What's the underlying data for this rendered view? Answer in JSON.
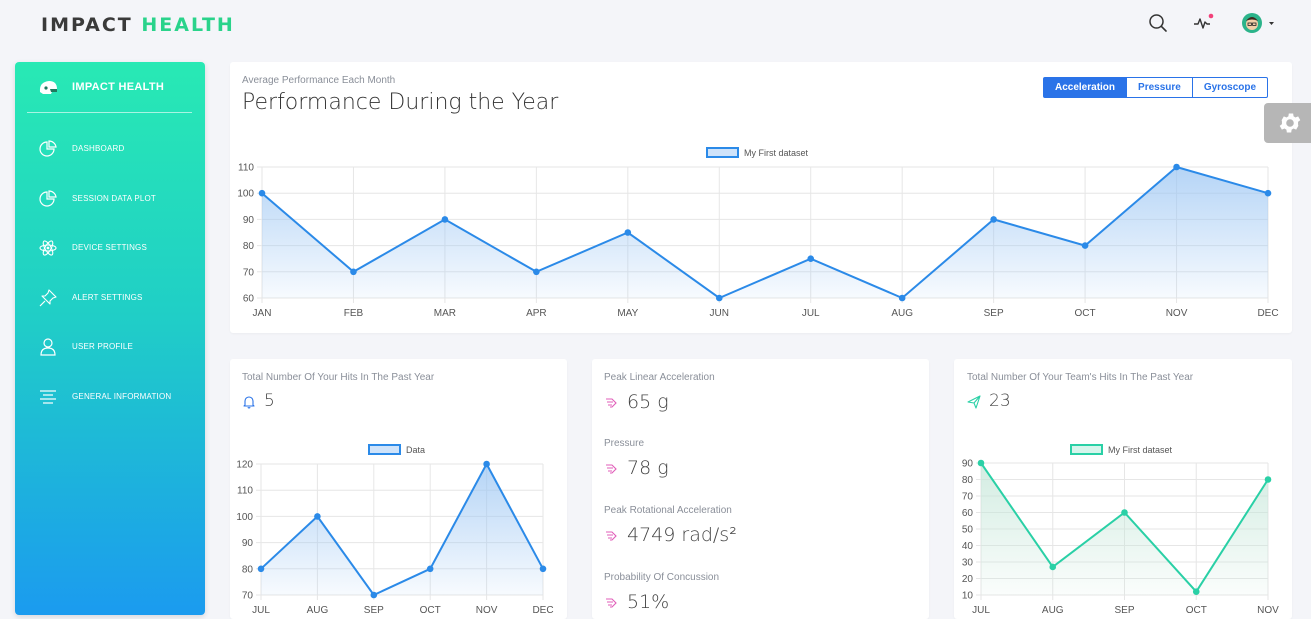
{
  "brand": {
    "part1": "IMPACT",
    "part2": "HEALTH"
  },
  "topbar": {
    "icons": [
      "search-icon",
      "activity-icon",
      "avatar"
    ]
  },
  "sidebar": {
    "title": "IMPACT HEALTH",
    "items": [
      {
        "label": "DASHBOARD",
        "icon": "pie-chart-icon"
      },
      {
        "label": "SESSION DATA PLOT",
        "icon": "pie-chart-icon"
      },
      {
        "label": "DEVICE SETTINGS",
        "icon": "atom-icon"
      },
      {
        "label": "ALERT SETTINGS",
        "icon": "pin-icon"
      },
      {
        "label": "USER PROFILE",
        "icon": "user-icon"
      },
      {
        "label": "GENERAL INFORMATION",
        "icon": "align-center-icon"
      }
    ]
  },
  "performance": {
    "subtitle": "Average Performance Each Month",
    "title": "Performance During the Year",
    "tabs": [
      "Acceleration",
      "Pressure",
      "Gyroscope"
    ],
    "active_tab": "Acceleration"
  },
  "hits": {
    "label": "Total Number Of Your Hits In The Past Year",
    "value": "5"
  },
  "stats": {
    "peak_linear_label": "Peak Linear Acceleration",
    "peak_linear_value": "65 g",
    "pressure_label": "Pressure",
    "pressure_value": "78 g",
    "peak_rot_label": "Peak Rotational Acceleration",
    "peak_rot_value": "4749 rad/s²",
    "concussion_label": "Probability Of Concussion",
    "concussion_value": "51%"
  },
  "team": {
    "label": "Total Number Of Your Team's Hits In The Past Year",
    "value": "23"
  },
  "colors": {
    "accent": "#2a73e8",
    "brand_green": "#2ad38b",
    "line_blue": "#2b8ae8",
    "line_teal": "#2ad0a6",
    "stat_icon": "#e05cb8"
  },
  "chart_data": [
    {
      "type": "line",
      "categories": [
        "JAN",
        "FEB",
        "MAR",
        "APR",
        "MAY",
        "JUN",
        "JUL",
        "AUG",
        "SEP",
        "OCT",
        "NOV",
        "DEC"
      ],
      "series": [
        {
          "name": "My First dataset",
          "values": [
            100,
            70,
            90,
            70,
            85,
            60,
            75,
            60,
            90,
            80,
            110,
            100
          ]
        }
      ],
      "yticks": [
        60,
        70,
        80,
        90,
        100,
        110
      ],
      "ylim": [
        60,
        110
      ],
      "grid": true,
      "legend": "top-center",
      "fill": true
    },
    {
      "type": "line",
      "categories": [
        "JUL",
        "AUG",
        "SEP",
        "OCT",
        "NOV",
        "DEC"
      ],
      "series": [
        {
          "name": "Data",
          "values": [
            80,
            100,
            70,
            80,
            120,
            80
          ]
        }
      ],
      "yticks": [
        70,
        80,
        90,
        100,
        110,
        120
      ],
      "ylim": [
        70,
        120
      ],
      "grid": true,
      "legend": "top-center",
      "fill": true
    },
    {
      "type": "line",
      "categories": [
        "JUL",
        "AUG",
        "SEP",
        "OCT",
        "NOV"
      ],
      "series": [
        {
          "name": "My First dataset",
          "values": [
            90,
            27,
            60,
            12,
            80
          ]
        }
      ],
      "yticks": [
        10,
        20,
        30,
        40,
        50,
        60,
        70,
        80,
        90
      ],
      "ylim": [
        10,
        90
      ],
      "grid": true,
      "legend": "top-center",
      "fill": true
    }
  ]
}
